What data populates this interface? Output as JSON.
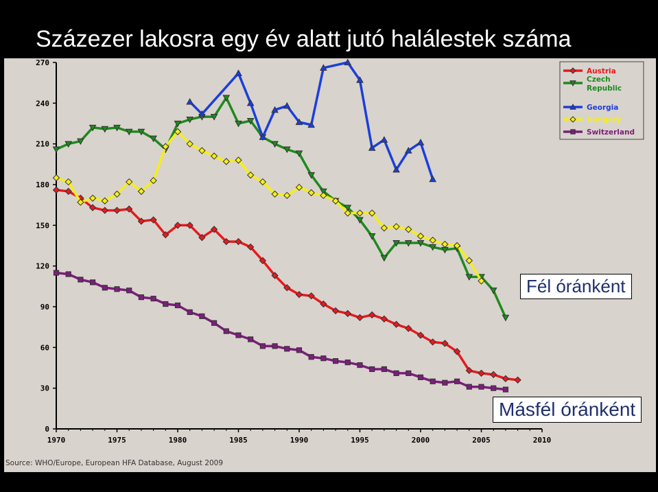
{
  "title": "Százezer lakosra egy év alatt jutó halálestek száma",
  "source": "Source: WHO/Europe, European HFA Database, August 2009",
  "annotations": [
    "Fél óránként",
    "Másfél óránként"
  ],
  "chart_data": {
    "type": "line",
    "title": "Százezer lakosra egy év alatt jutó halálestek száma",
    "xlabel": "",
    "ylabel": "",
    "xlim": [
      1970,
      2010
    ],
    "ylim": [
      0,
      270
    ],
    "x_ticks": [
      1970,
      1975,
      1980,
      1985,
      1990,
      1995,
      2000,
      2005,
      2010
    ],
    "y_ticks": [
      0,
      30,
      60,
      90,
      120,
      150,
      180,
      210,
      240,
      270
    ],
    "grid": false,
    "legend_position": "top-right",
    "series": [
      {
        "name": "Austria",
        "color": "#e8191d",
        "marker": "diamond",
        "points": [
          [
            1970,
            176
          ],
          [
            1971,
            175
          ],
          [
            1972,
            170
          ],
          [
            1973,
            163
          ],
          [
            1974,
            161
          ],
          [
            1975,
            161
          ],
          [
            1976,
            162
          ],
          [
            1977,
            153
          ],
          [
            1978,
            154
          ],
          [
            1979,
            143
          ],
          [
            1980,
            150
          ],
          [
            1981,
            150
          ],
          [
            1982,
            141
          ],
          [
            1983,
            147
          ],
          [
            1984,
            138
          ],
          [
            1985,
            138
          ],
          [
            1986,
            134
          ],
          [
            1987,
            124
          ],
          [
            1988,
            113
          ],
          [
            1989,
            104
          ],
          [
            1990,
            99
          ],
          [
            1991,
            98
          ],
          [
            1992,
            92
          ],
          [
            1993,
            87
          ],
          [
            1994,
            85
          ],
          [
            1995,
            82
          ],
          [
            1996,
            84
          ],
          [
            1997,
            81
          ],
          [
            1998,
            77
          ],
          [
            1999,
            74
          ],
          [
            2000,
            69
          ],
          [
            2001,
            64
          ],
          [
            2002,
            63
          ],
          [
            2003,
            57
          ],
          [
            2004,
            43
          ],
          [
            2005,
            41
          ],
          [
            2006,
            40
          ],
          [
            2007,
            37
          ],
          [
            2008,
            36
          ]
        ]
      },
      {
        "name": "Czech Republic",
        "color": "#1e8a1e",
        "marker": "triangle-down",
        "points": [
          [
            1970,
            206
          ],
          [
            1971,
            210
          ],
          [
            1972,
            212
          ],
          [
            1973,
            222
          ],
          [
            1974,
            221
          ],
          [
            1975,
            222
          ],
          [
            1976,
            219
          ],
          [
            1977,
            219
          ],
          [
            1978,
            214
          ],
          [
            1979,
            206
          ],
          [
            1980,
            225
          ],
          [
            1981,
            228
          ],
          [
            1982,
            230
          ],
          [
            1983,
            230
          ],
          [
            1984,
            244
          ],
          [
            1985,
            225
          ],
          [
            1986,
            227
          ],
          [
            1987,
            215
          ],
          [
            1988,
            210
          ],
          [
            1989,
            206
          ],
          [
            1990,
            203
          ],
          [
            1991,
            187
          ],
          [
            1992,
            175
          ],
          [
            1993,
            168
          ],
          [
            1994,
            163
          ],
          [
            1995,
            154
          ],
          [
            1996,
            142
          ],
          [
            1997,
            126
          ],
          [
            1998,
            137
          ],
          [
            1999,
            137
          ],
          [
            2000,
            137
          ],
          [
            2001,
            134
          ],
          [
            2002,
            132
          ],
          [
            2003,
            133
          ],
          [
            2004,
            112
          ],
          [
            2005,
            112
          ],
          [
            2006,
            102
          ],
          [
            2007,
            82
          ]
        ]
      },
      {
        "name": "Georgia",
        "color": "#1a3fdc",
        "marker": "triangle-up",
        "points": [
          [
            1981,
            241
          ],
          [
            1982,
            232
          ],
          [
            1985,
            262
          ],
          [
            1986,
            240
          ],
          [
            1987,
            215
          ],
          [
            1988,
            235
          ],
          [
            1989,
            238
          ],
          [
            1990,
            226
          ],
          [
            1991,
            224
          ],
          [
            1992,
            266
          ],
          [
            1994,
            270
          ],
          [
            1995,
            257
          ],
          [
            1996,
            207
          ],
          [
            1997,
            213
          ],
          [
            1998,
            191
          ],
          [
            1999,
            205
          ],
          [
            2000,
            211
          ],
          [
            2001,
            184
          ]
        ]
      },
      {
        "name": "Hungary",
        "color": "#f5ee1a",
        "marker": "diamond",
        "points": [
          [
            1970,
            185
          ],
          [
            1971,
            182
          ],
          [
            1972,
            167
          ],
          [
            1973,
            170
          ],
          [
            1974,
            168
          ],
          [
            1975,
            173
          ],
          [
            1976,
            182
          ],
          [
            1977,
            175
          ],
          [
            1978,
            183
          ],
          [
            1979,
            208
          ],
          [
            1980,
            219
          ],
          [
            1981,
            210
          ],
          [
            1982,
            205
          ],
          [
            1983,
            201
          ],
          [
            1984,
            197
          ],
          [
            1985,
            198
          ],
          [
            1986,
            187
          ],
          [
            1987,
            182
          ],
          [
            1988,
            173
          ],
          [
            1989,
            172
          ],
          [
            1990,
            178
          ],
          [
            1991,
            174
          ],
          [
            1992,
            172
          ],
          [
            1993,
            168
          ],
          [
            1994,
            159
          ],
          [
            1995,
            159
          ],
          [
            1996,
            159
          ],
          [
            1997,
            148
          ],
          [
            1998,
            149
          ],
          [
            1999,
            147
          ],
          [
            2000,
            142
          ],
          [
            2001,
            139
          ],
          [
            2002,
            136
          ],
          [
            2003,
            135
          ],
          [
            2004,
            124
          ],
          [
            2005,
            109
          ]
        ]
      },
      {
        "name": "Switzerland",
        "color": "#7a1f7a",
        "marker": "square",
        "points": [
          [
            1970,
            115
          ],
          [
            1971,
            114
          ],
          [
            1972,
            110
          ],
          [
            1973,
            108
          ],
          [
            1974,
            104
          ],
          [
            1975,
            103
          ],
          [
            1976,
            102
          ],
          [
            1977,
            97
          ],
          [
            1978,
            96
          ],
          [
            1979,
            92
          ],
          [
            1980,
            91
          ],
          [
            1981,
            86
          ],
          [
            1982,
            83
          ],
          [
            1983,
            78
          ],
          [
            1984,
            72
          ],
          [
            1985,
            69
          ],
          [
            1986,
            66
          ],
          [
            1987,
            61
          ],
          [
            1988,
            61
          ],
          [
            1989,
            59
          ],
          [
            1990,
            58
          ],
          [
            1991,
            53
          ],
          [
            1992,
            52
          ],
          [
            1993,
            50
          ],
          [
            1994,
            49
          ],
          [
            1995,
            47
          ],
          [
            1996,
            44
          ],
          [
            1997,
            44
          ],
          [
            1998,
            41
          ],
          [
            1999,
            41
          ],
          [
            2000,
            38
          ],
          [
            2001,
            35
          ],
          [
            2002,
            34
          ],
          [
            2003,
            35
          ],
          [
            2004,
            31
          ],
          [
            2005,
            31
          ],
          [
            2006,
            30
          ],
          [
            2007,
            29
          ]
        ]
      }
    ]
  }
}
